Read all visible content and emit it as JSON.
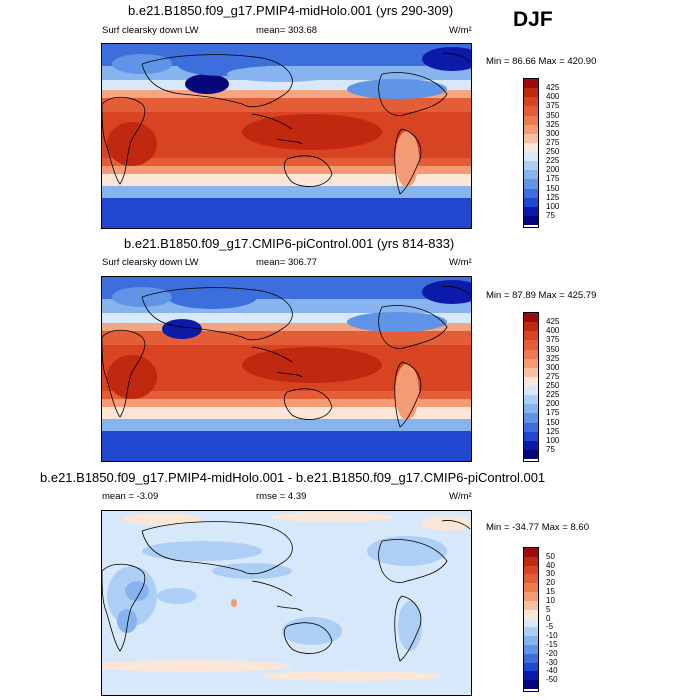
{
  "season": "DJF",
  "panels": [
    {
      "title": "b.e21.B1850.f09_g17.PMIP4-midHolo.001 (yrs 290-309)",
      "variable": "Surf clearsky down LW",
      "stat": "mean= 303.68",
      "units": "W/m²",
      "minmax": "Min =  86.66 Max = 420.90",
      "levels": [
        "425",
        "400",
        "375",
        "350",
        "325",
        "300",
        "275",
        "250",
        "225",
        "200",
        "175",
        "150",
        "125",
        "100",
        "75"
      ],
      "colors": [
        "#9b0c0c",
        "#c0290f",
        "#d84322",
        "#e35d36",
        "#ec7b51",
        "#f49b75",
        "#f8c0a3",
        "#fbe6d8",
        "#d7e8fa",
        "#aecff5",
        "#87b4ee",
        "#5f94e6",
        "#3c6fdc",
        "#2146cf",
        "#0c1aa9",
        "#06067a"
      ]
    },
    {
      "title": "b.e21.B1850.f09_g17.CMIP6-piControl.001 (yrs 814-833)",
      "variable": "Surf clearsky down LW",
      "stat": "mean= 306.77",
      "units": "W/m²",
      "minmax": "Min =  87.89 Max = 425.79",
      "levels": [
        "425",
        "400",
        "375",
        "350",
        "325",
        "300",
        "275",
        "250",
        "225",
        "200",
        "175",
        "150",
        "125",
        "100",
        "75"
      ],
      "colors": [
        "#9b0c0c",
        "#c0290f",
        "#d84322",
        "#e35d36",
        "#ec7b51",
        "#f49b75",
        "#f8c0a3",
        "#fbe6d8",
        "#d7e8fa",
        "#aecff5",
        "#87b4ee",
        "#5f94e6",
        "#3c6fdc",
        "#2146cf",
        "#0c1aa9",
        "#06067a"
      ]
    },
    {
      "title": "b.e21.B1850.f09_g17.PMIP4-midHolo.001 - b.e21.B1850.f09_g17.CMIP6-piControl.001",
      "stat": "mean =  -3.09",
      "stat2": "rmse =   4.39",
      "units": "W/m²",
      "minmax": "Min = -34.77 Max =   8.60",
      "levels": [
        "50",
        "40",
        "30",
        "20",
        "15",
        "10",
        "5",
        "0",
        "-5",
        "-10",
        "-15",
        "-20",
        "-30",
        "-40",
        "-50"
      ],
      "colors": [
        "#9b0c0c",
        "#c0290f",
        "#d84322",
        "#e35d36",
        "#ec7b51",
        "#f49b75",
        "#f8c0a3",
        "#fbe6d8",
        "#d7e8fa",
        "#aecff5",
        "#87b4ee",
        "#5f94e6",
        "#3c6fdc",
        "#2146cf",
        "#0c1aa9",
        "#06067a"
      ]
    }
  ]
}
